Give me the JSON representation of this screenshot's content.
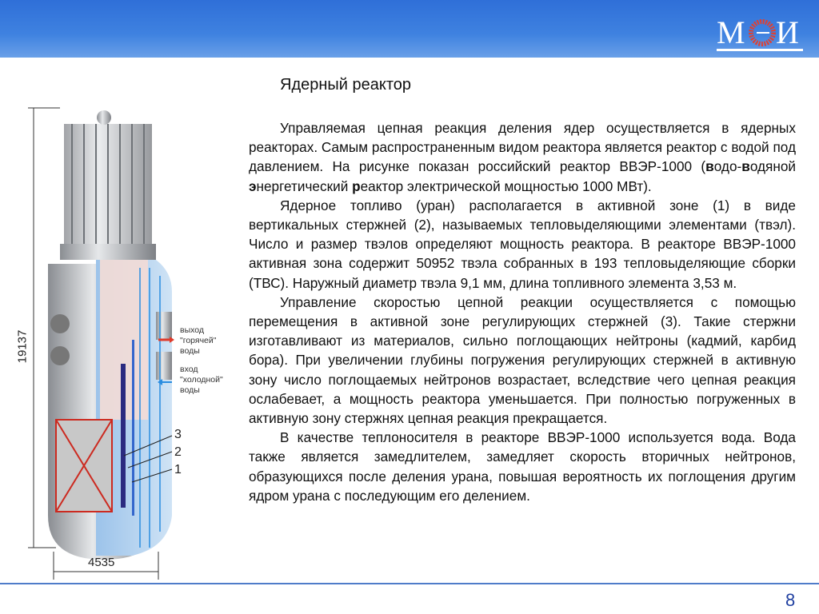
{
  "header": {
    "logo_text": "МЭИ",
    "logo_color": "#e04030",
    "bg_color": "#3a7ade"
  },
  "slide": {
    "title": "Ядерный реактор",
    "paragraphs": [
      {
        "a": "Управляемая цепная реакция деления ядер осуществляется в ядерных реакторах. Самым распространенным видом реактора является реактор с водой под давлением. На рисунке показан российский реактор ВВЭР-1000 (",
        "b1": "в",
        "c1": "одо-",
        "b2": "в",
        "c2": "одяной ",
        "b3": "э",
        "c3": "нергетический ",
        "b4": "р",
        "d": "еактор электрической мощностью 1000 МВт)."
      },
      {
        "text": "Ядерное топливо (уран) располагается в активной зоне (1) в виде вертикальных стержней (2), называемых тепловыделяющими элементами (твэл). Число и размер твэлов определяют мощность реактора. В реакторе ВВЭР-1000 активная зона содержит 50952 твэла собранных в 193 тепловыделяющие сборки (ТВС). Наружный диаметр твэла 9,1 мм, длина топливного элемента 3,53 м."
      },
      {
        "text": "Управление скоростью цепной реакции осуществляется с помощью перемещения в активной зоне регулирующих стержней (3). Такие стержни изготавливают из материалов, сильно поглощающих нейтроны (кадмий, карбид бора). При увеличении глубины погружения регулирующих стержней в активную зону число поглощаемых нейтронов возрастает, вследствие чего цепная реакция ослабевает, а мощность реактора уменьшается. При полностью погруженных в активную зону стержнях цепная реакция прекращается."
      },
      {
        "text": "В качестве теплоносителя в реакторе ВВЭР-1000 используется вода. Вода также является замедлителем, замедляет скорость вторичных нейтронов, образующихся после деления урана, повышая вероятность их поглощения другим ядром урана с последующим его делением."
      }
    ],
    "page_number": "8"
  },
  "diagram": {
    "height_dim": "19137",
    "width_dim": "4535",
    "hot_water_label": [
      "выход",
      "\"горячей\"",
      "воды"
    ],
    "cold_water_label": [
      "вход",
      "\"холодной\"",
      "воды"
    ],
    "callouts": [
      "3",
      "2",
      "1"
    ],
    "hot_arrow_color": "#e03a2a",
    "cold_arrow_color": "#2a8de0"
  }
}
